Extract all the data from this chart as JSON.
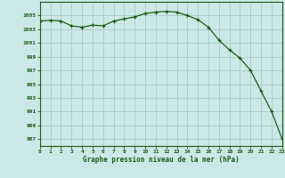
{
  "x": [
    0,
    1,
    2,
    3,
    4,
    5,
    6,
    7,
    8,
    9,
    10,
    11,
    12,
    13,
    14,
    15,
    16,
    17,
    18,
    19,
    20,
    21,
    22,
    23
  ],
  "y": [
    1004.2,
    1004.3,
    1004.2,
    1003.5,
    1003.3,
    1003.6,
    1003.5,
    1004.2,
    1004.5,
    1004.8,
    1005.3,
    1005.5,
    1005.6,
    1005.5,
    1005.0,
    1004.4,
    1003.3,
    1001.4,
    1000.0,
    998.8,
    997.0,
    994.0,
    991.0,
    987.0
  ],
  "line_color": "#1a5c1a",
  "marker_color": "#1a5c1a",
  "bg_color": "#cce8e6",
  "grid_color": "#aacfcc",
  "xlabel": "Graphe pression niveau de la mer (hPa)",
  "xlabel_color": "#1a5c1a",
  "tick_color": "#1a5c1a",
  "ylim_min": 986,
  "ylim_max": 1007,
  "yticks": [
    987,
    989,
    991,
    993,
    995,
    997,
    999,
    1001,
    1003,
    1005
  ],
  "xticks": [
    0,
    1,
    2,
    3,
    4,
    5,
    6,
    7,
    8,
    9,
    10,
    11,
    12,
    13,
    14,
    15,
    16,
    17,
    18,
    19,
    20,
    21,
    22,
    23
  ]
}
